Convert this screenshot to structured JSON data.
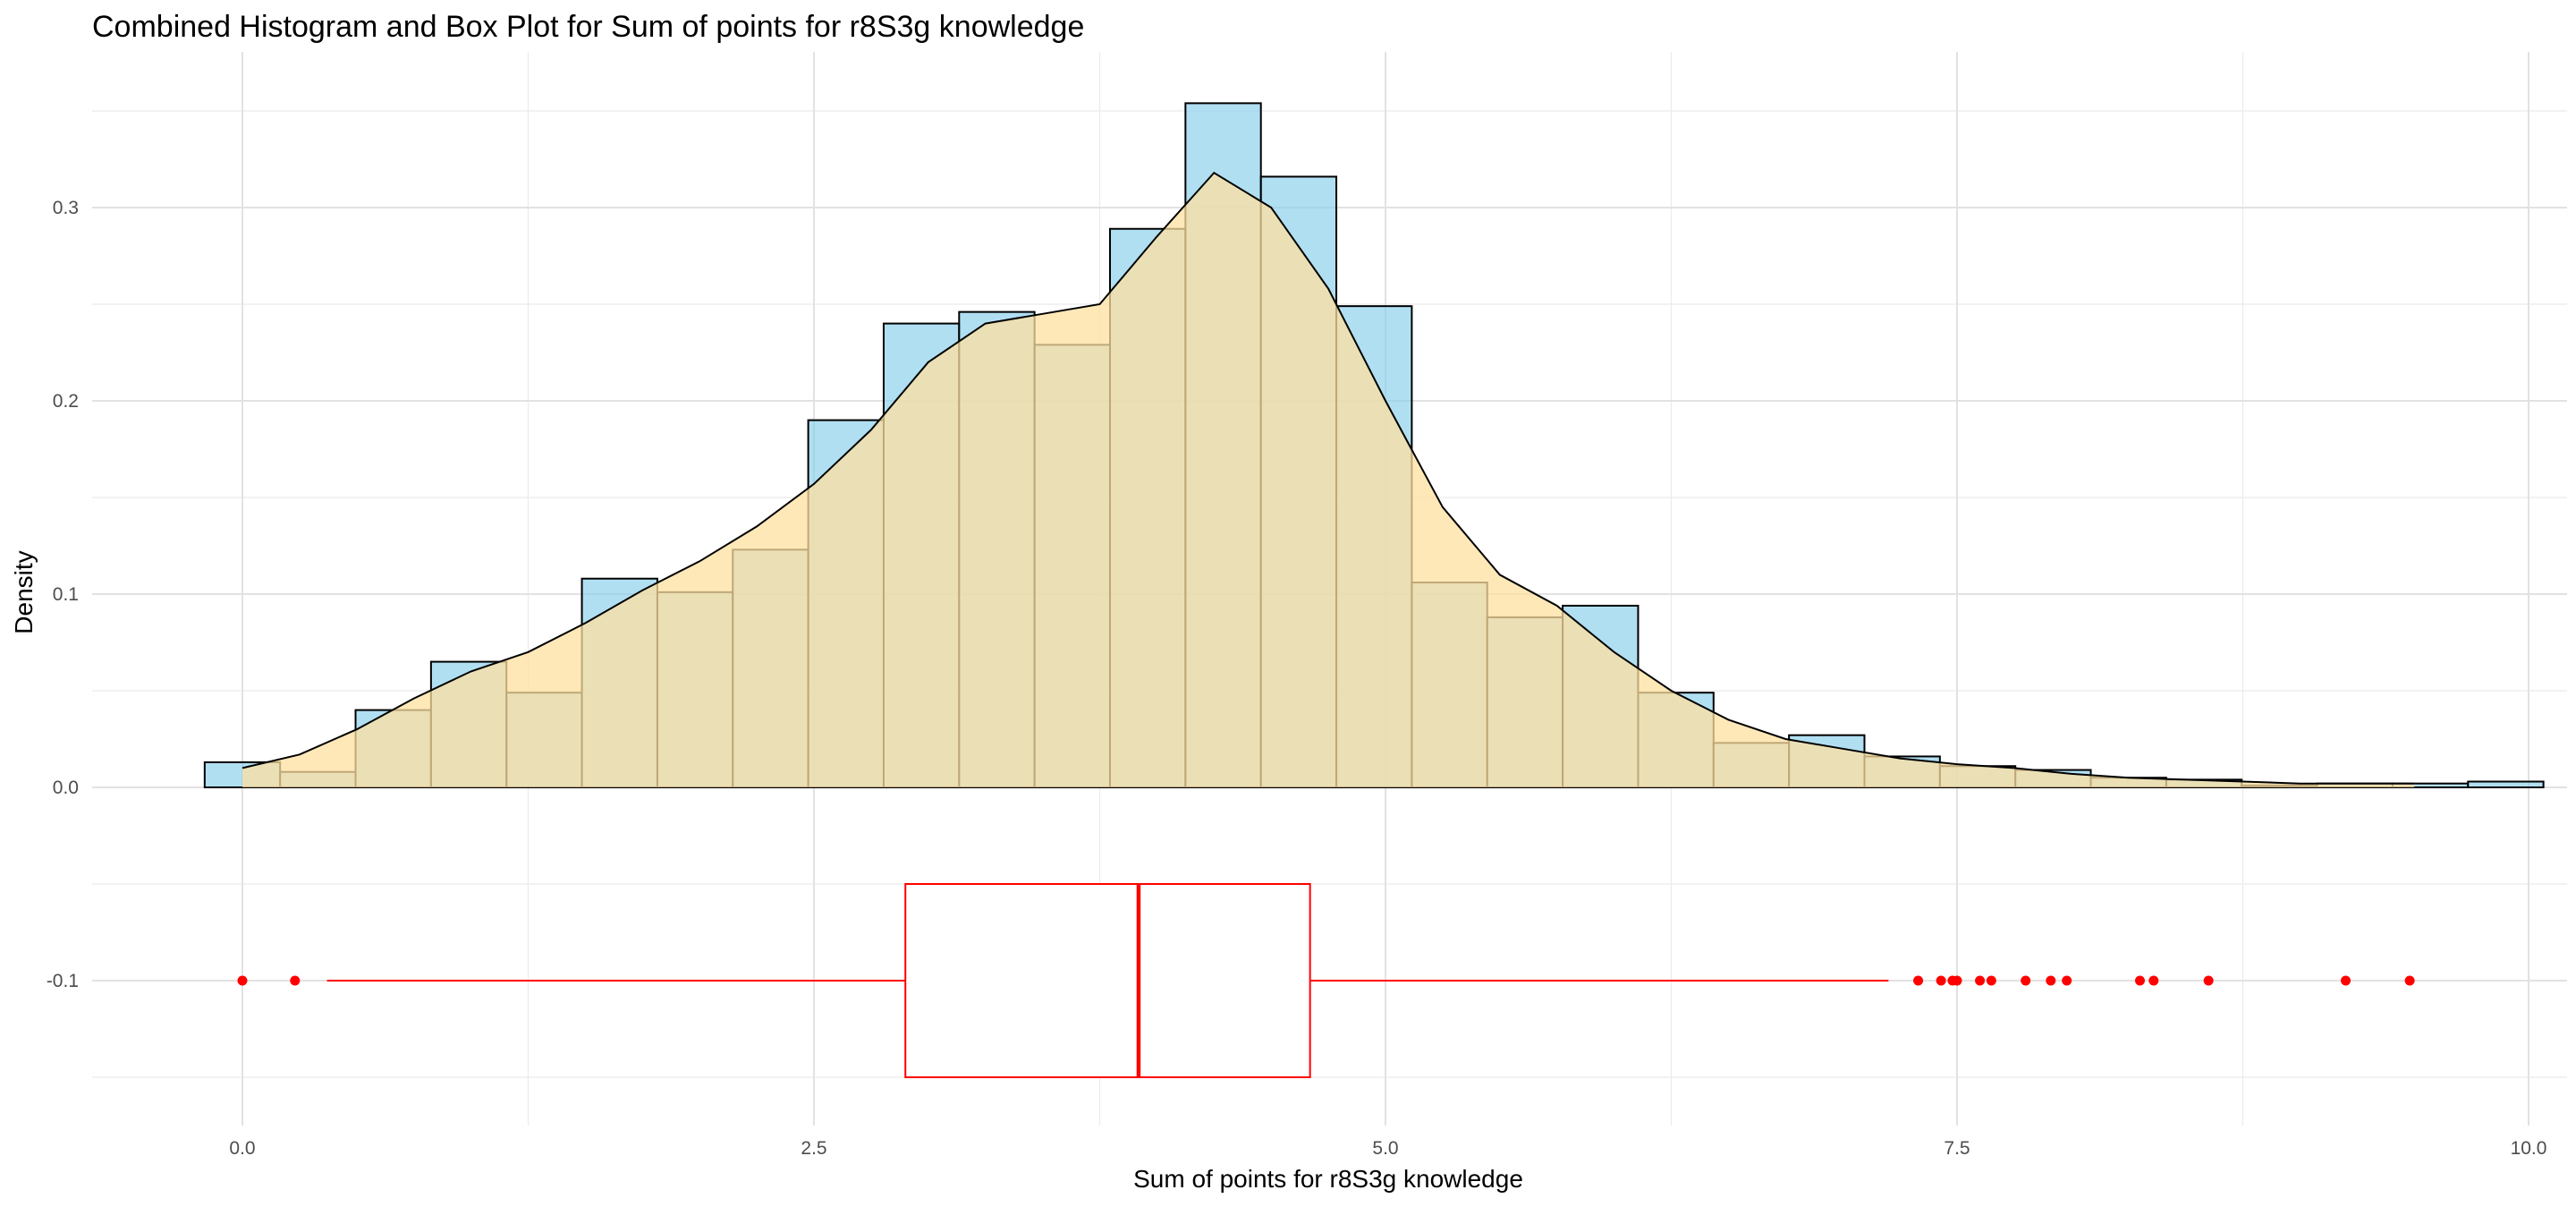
{
  "chart_data": {
    "type": "histogram+density+boxplot",
    "title": "Combined Histogram and Box Plot for Sum of points for r8S3g knowledge",
    "xlabel": "Sum of points for r8S3g knowledge",
    "ylabel": "Density",
    "xlim": [
      -0.3,
      10.0
    ],
    "ylim": [
      -0.175,
      0.375
    ],
    "x_ticks": [
      0.0,
      2.5,
      5.0,
      7.5,
      10.0
    ],
    "x_tick_labels": [
      "0.0",
      "2.5",
      "5.0",
      "7.5",
      "10.0"
    ],
    "y_ticks": [
      -0.1,
      0.0,
      0.1,
      0.2,
      0.3
    ],
    "y_tick_labels": [
      "-0.1",
      "0.0",
      "0.1",
      "0.2",
      "0.3"
    ],
    "grid": true,
    "histogram": {
      "fill": "#87CEEB",
      "fill_opacity": 0.65,
      "stroke": "#000000",
      "bin_start": -0.165,
      "bin_width": 0.33,
      "values": [
        0.013,
        0.008,
        0.04,
        0.065,
        0.049,
        0.108,
        0.101,
        0.123,
        0.19,
        0.24,
        0.246,
        0.229,
        0.289,
        0.354,
        0.316,
        0.249,
        0.106,
        0.088,
        0.094,
        0.049,
        0.023,
        0.027,
        0.016,
        0.011,
        0.009,
        0.005,
        0.004,
        0.001,
        0.002,
        0.002,
        0.003
      ]
    },
    "density": {
      "fill": "#FFE0A0",
      "fill_opacity": 0.75,
      "stroke": "#000000",
      "x": [
        0.0,
        0.25,
        0.5,
        0.75,
        1.0,
        1.25,
        1.5,
        1.75,
        2.0,
        2.25,
        2.5,
        2.75,
        3.0,
        3.25,
        3.5,
        3.75,
        4.0,
        4.25,
        4.5,
        4.75,
        5.0,
        5.25,
        5.5,
        5.75,
        6.0,
        6.25,
        6.5,
        6.75,
        7.0,
        7.25,
        7.5,
        7.75,
        8.0,
        8.25,
        8.5,
        8.75,
        9.0,
        9.25,
        9.5
      ],
      "y": [
        0.01,
        0.017,
        0.03,
        0.046,
        0.06,
        0.07,
        0.085,
        0.102,
        0.117,
        0.135,
        0.157,
        0.185,
        0.22,
        0.24,
        0.245,
        0.25,
        0.285,
        0.318,
        0.3,
        0.258,
        0.2,
        0.145,
        0.11,
        0.094,
        0.07,
        0.05,
        0.035,
        0.025,
        0.02,
        0.015,
        0.012,
        0.01,
        0.007,
        0.005,
        0.004,
        0.003,
        0.002,
        0.002,
        0.002
      ]
    },
    "boxplot": {
      "color": "#FF0000",
      "y_center": -0.1,
      "y_halfwidth": 0.05,
      "whisker_low": 0.37,
      "q1": 2.9,
      "median": 3.92,
      "q3": 4.67,
      "whisker_high": 7.2,
      "outliers": [
        0.0,
        0.23,
        7.33,
        7.43,
        7.48,
        7.5,
        7.6,
        7.65,
        7.8,
        7.91,
        7.98,
        8.3,
        8.36,
        8.6,
        9.2,
        9.48
      ]
    }
  }
}
